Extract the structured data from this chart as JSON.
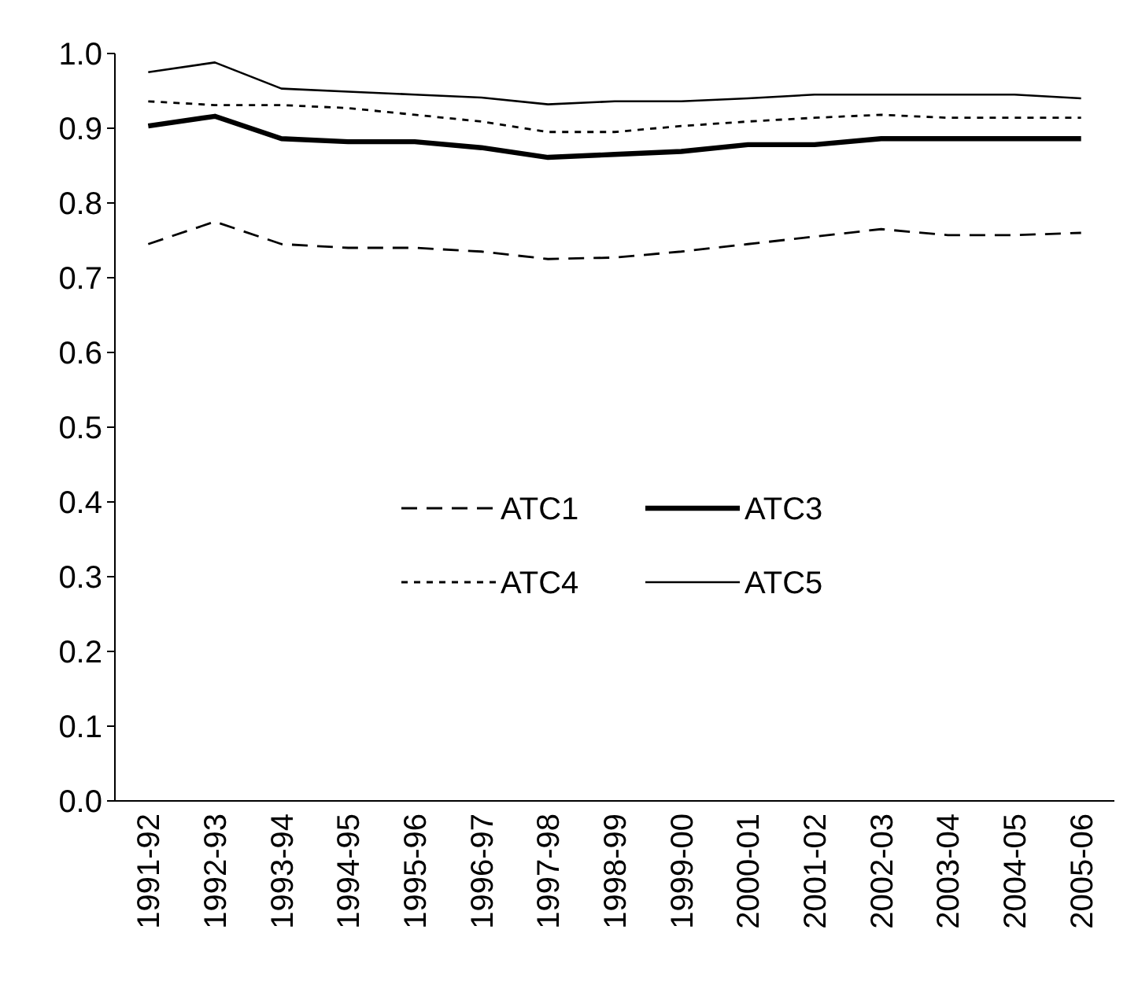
{
  "chart_data": {
    "type": "line",
    "categories": [
      "1991-92",
      "1992-93",
      "1993-94",
      "1994-95",
      "1995-96",
      "1996-97",
      "1997-98",
      "1998-99",
      "1999-00",
      "2000-01",
      "2001-02",
      "2002-03",
      "2003-04",
      "2004-05",
      "2005-06"
    ],
    "ylim": [
      0,
      1
    ],
    "yticks": [
      {
        "value": 0,
        "label": "0.0"
      },
      0.1,
      0.2,
      0.3,
      0.4,
      0.5,
      0.6,
      0.7,
      0.8,
      0.9,
      {
        "value": 1,
        "label": "1.0"
      }
    ],
    "grid": false,
    "legend": "center",
    "series": [
      {
        "name": "ATC1",
        "color": "#000000",
        "line_style": "dashed",
        "values": [
          0.745,
          0.775,
          0.745,
          0.74,
          0.74,
          0.735,
          0.725,
          0.727,
          0.735,
          0.745,
          0.755,
          0.765,
          0.757,
          0.757,
          0.76
        ]
      },
      {
        "name": "ATC3",
        "color": "#000000",
        "line_style": "solid",
        "values": [
          0.903,
          0.916,
          0.886,
          0.882,
          0.882,
          0.874,
          0.861,
          0.865,
          0.869,
          0.878,
          0.878,
          0.886,
          0.886,
          0.886,
          0.886
        ]
      },
      {
        "name": "ATC4",
        "color": "#000000",
        "line_style": "dotted",
        "values": [
          0.936,
          0.931,
          0.931,
          0.927,
          0.918,
          0.909,
          0.895,
          0.895,
          0.903,
          0.909,
          0.914,
          0.918,
          0.914,
          0.914,
          0.914
        ]
      },
      {
        "name": "ATC5",
        "color": "#000000",
        "line_style": "solid",
        "values": [
          0.975,
          0.988,
          0.953,
          0.949,
          0.945,
          0.941,
          0.932,
          0.936,
          0.936,
          0.94,
          0.945,
          0.945,
          0.945,
          0.945,
          0.94
        ]
      }
    ]
  }
}
